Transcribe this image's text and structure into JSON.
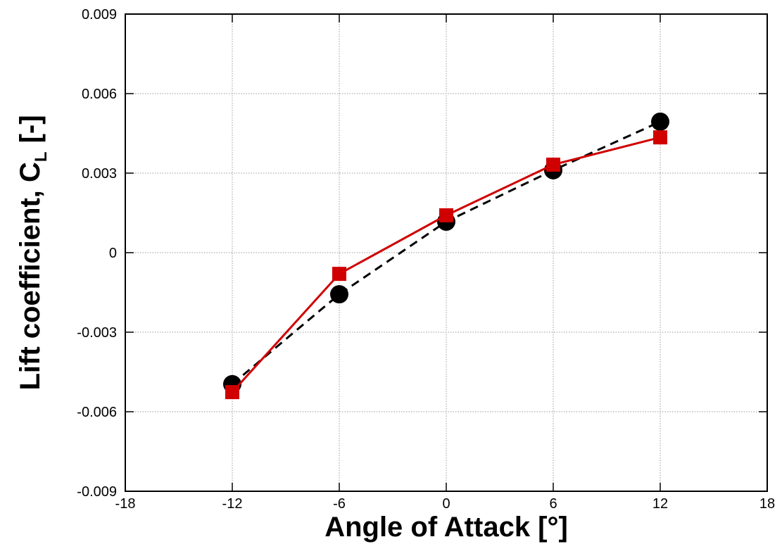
{
  "chart_data": {
    "type": "line",
    "xlabel": "Angle of Attack [°]",
    "ylabel": "Lift coefficient, C",
    "ylabel_subscript": "L",
    "ylabel_suffix": "[-]",
    "x": [
      -12,
      -6,
      0,
      6,
      12
    ],
    "series": [
      {
        "color": "#000000",
        "marker": "circle",
        "linestyle": "dashed",
        "values": [
          -0.00496,
          -0.00157,
          0.00117,
          0.00311,
          0.00494
        ]
      },
      {
        "color": "#d00000",
        "marker": "square",
        "linestyle": "solid",
        "values": [
          -0.00526,
          -0.0008,
          0.00141,
          0.00332,
          0.00435
        ]
      }
    ],
    "xlim": [
      -18,
      18
    ],
    "xticks": [
      -18,
      -12,
      -6,
      0,
      6,
      12,
      18
    ],
    "ylim": [
      -0.009,
      0.009
    ],
    "yticks": [
      -0.009,
      -0.006,
      -0.003,
      0,
      0.003,
      0.006,
      0.009
    ],
    "grid": true
  }
}
